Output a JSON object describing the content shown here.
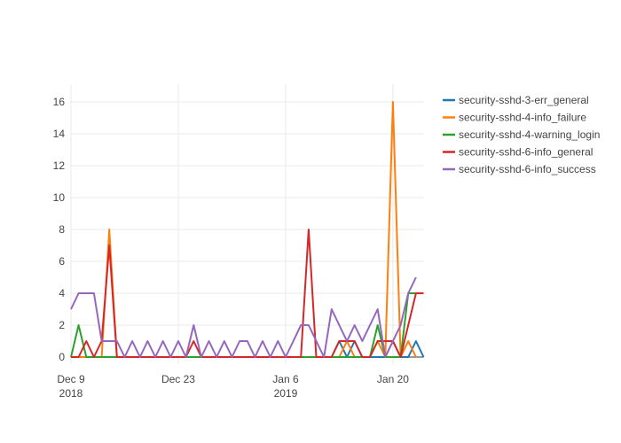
{
  "chart_data": {
    "type": "line",
    "title": "",
    "xlabel": "",
    "ylabel": "",
    "ylim": [
      0,
      16
    ],
    "grid": true,
    "legend_position": "top-right",
    "x": [
      "Dec 9 2018",
      "Dec 10",
      "Dec 11",
      "Dec 12",
      "Dec 13",
      "Dec 14",
      "Dec 15",
      "Dec 16",
      "Dec 17",
      "Dec 18",
      "Dec 19",
      "Dec 20",
      "Dec 21",
      "Dec 22",
      "Dec 23",
      "Dec 24",
      "Dec 25",
      "Dec 26",
      "Dec 27",
      "Dec 28",
      "Dec 29",
      "Dec 30",
      "Dec 31",
      "Jan 1 2019",
      "Jan 2",
      "Jan 3",
      "Jan 4",
      "Jan 5",
      "Jan 6",
      "Jan 7",
      "Jan 8",
      "Jan 9",
      "Jan 10",
      "Jan 11",
      "Jan 12",
      "Jan 13",
      "Jan 14",
      "Jan 15",
      "Jan 16",
      "Jan 17",
      "Jan 18",
      "Jan 19",
      "Jan 20",
      "Jan 21",
      "Jan 22",
      "Jan 23",
      "Jan 24"
    ],
    "yticks": [
      0,
      2,
      4,
      6,
      8,
      10,
      12,
      14,
      16
    ],
    "xticks": [
      {
        "index": 0,
        "lines": [
          "Dec 9",
          "2018"
        ]
      },
      {
        "index": 14,
        "lines": [
          "Dec 23"
        ]
      },
      {
        "index": 28,
        "lines": [
          "Jan 6",
          "2019"
        ]
      },
      {
        "index": 42,
        "lines": [
          "Jan 20"
        ]
      }
    ],
    "series": [
      {
        "name": "security-sshd-3-err_general",
        "color": "#1f77b4",
        "values": [
          0,
          0,
          0,
          0,
          0,
          0,
          0,
          0,
          0,
          0,
          0,
          0,
          0,
          0,
          0,
          0,
          0,
          0,
          0,
          0,
          0,
          0,
          0,
          0,
          0,
          0,
          0,
          0,
          0,
          0,
          0,
          0,
          0,
          0,
          0,
          1,
          0,
          1,
          0,
          0,
          0,
          0,
          1,
          0,
          0,
          1,
          0
        ]
      },
      {
        "name": "security-sshd-4-info_failure",
        "color": "#ff7f0e",
        "values": [
          0,
          0,
          0,
          0,
          0,
          8,
          0,
          0,
          0,
          0,
          0,
          0,
          0,
          0,
          0,
          0,
          0,
          0,
          0,
          0,
          0,
          0,
          0,
          0,
          0,
          0,
          0,
          0,
          0,
          0,
          0,
          0,
          0,
          0,
          0,
          0,
          1,
          0,
          0,
          0,
          1,
          0,
          16,
          0,
          1,
          0,
          null
        ]
      },
      {
        "name": "security-sshd-4-warning_login",
        "color": "#2ca02c",
        "values": [
          0,
          2,
          0,
          0,
          0,
          0,
          0,
          0,
          0,
          0,
          0,
          0,
          0,
          0,
          0,
          0,
          0,
          0,
          0,
          0,
          0,
          0,
          0,
          0,
          0,
          0,
          0,
          0,
          0,
          0,
          0,
          0,
          0,
          0,
          0,
          0,
          0,
          0,
          0,
          0,
          2,
          0,
          0,
          0,
          4,
          4,
          4
        ]
      },
      {
        "name": "security-sshd-6-info_general",
        "color": "#d62728",
        "values": [
          0,
          0,
          1,
          0,
          1,
          7,
          0,
          0,
          0,
          0,
          0,
          0,
          0,
          0,
          0,
          0,
          1,
          0,
          0,
          0,
          0,
          0,
          0,
          0,
          0,
          0,
          0,
          0,
          0,
          0,
          0,
          8,
          0,
          0,
          0,
          1,
          1,
          1,
          0,
          0,
          1,
          1,
          1,
          0,
          2,
          4,
          4
        ]
      },
      {
        "name": "security-sshd-6-info_success",
        "color": "#9467bd",
        "values": [
          3,
          4,
          4,
          4,
          1,
          1,
          1,
          0,
          1,
          0,
          1,
          0,
          1,
          0,
          1,
          0,
          2,
          0,
          1,
          0,
          1,
          0,
          1,
          1,
          0,
          1,
          0,
          1,
          0,
          1,
          2,
          2,
          1,
          0,
          3,
          2,
          1,
          2,
          1,
          2,
          3,
          0,
          1,
          2,
          4,
          5,
          null
        ]
      }
    ]
  },
  "colors": {
    "grid": "#e9e9e9",
    "zeroline": "#999999",
    "tick_text": "#444444",
    "background": "#ffffff"
  }
}
